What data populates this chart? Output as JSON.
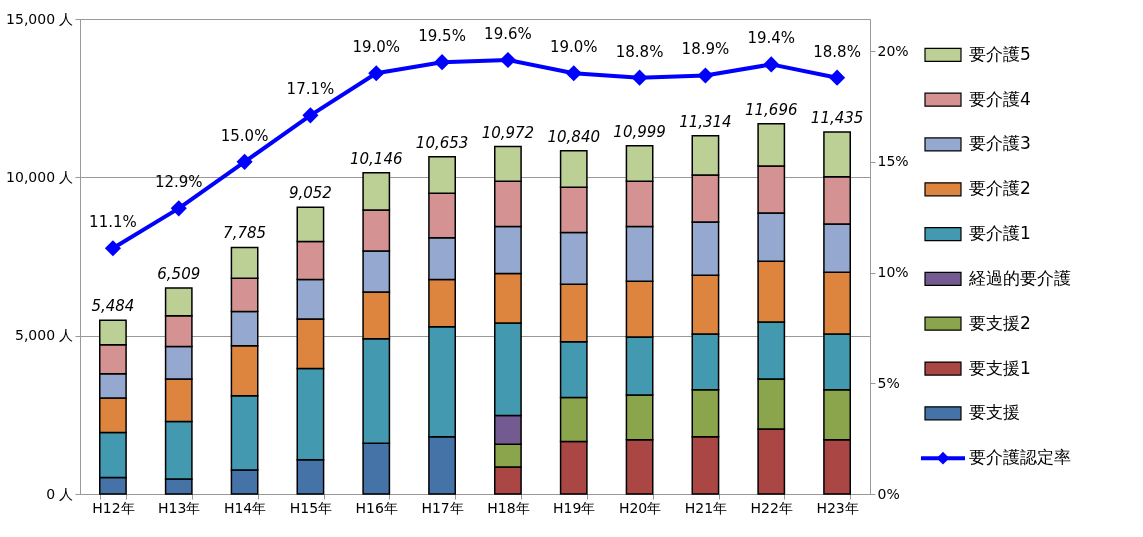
{
  "chart_data": {
    "type": "bar",
    "stacked": true,
    "categories": [
      "H12年",
      "H13年",
      "H14年",
      "H15年",
      "H16年",
      "H17年",
      "H18年",
      "H19年",
      "H20年",
      "H21年",
      "H22年",
      "H23年"
    ],
    "series": [
      {
        "name": "要支援",
        "color": "#4572a7",
        "values": [
          520,
          470,
          760,
          1080,
          1600,
          1810,
          null,
          null,
          null,
          null,
          null,
          null
        ]
      },
      {
        "name": "要支援1",
        "color": "#aa4744",
        "values": [
          null,
          null,
          null,
          null,
          null,
          null,
          850,
          1660,
          1710,
          1810,
          2050,
          1710
        ]
      },
      {
        "name": "要支援2",
        "color": "#8aa54b",
        "values": [
          null,
          null,
          null,
          null,
          null,
          null,
          720,
          1390,
          1420,
          1480,
          1580,
          1580
        ]
      },
      {
        "name": "経過的要介護",
        "color": "#735a91",
        "values": [
          null,
          null,
          null,
          null,
          null,
          null,
          910,
          null,
          null,
          null,
          null,
          null
        ]
      },
      {
        "name": "要介護1",
        "color": "#4299b0",
        "values": [
          1420,
          1820,
          2340,
          2880,
          3300,
          3470,
          2920,
          1760,
          1830,
          1760,
          1800,
          1760
        ]
      },
      {
        "name": "要介護2",
        "color": "#dd853e",
        "values": [
          1090,
          1340,
          1580,
          1570,
          1480,
          1490,
          1560,
          1810,
          1760,
          1860,
          1920,
          1950
        ]
      },
      {
        "name": "要介護3",
        "color": "#95a9d0",
        "values": [
          770,
          1030,
          1080,
          1240,
          1290,
          1320,
          1490,
          1640,
          1730,
          1680,
          1520,
          1530
        ]
      },
      {
        "name": "要介護4",
        "color": "#d49392",
        "values": [
          910,
          970,
          1050,
          1200,
          1300,
          1410,
          1430,
          1430,
          1430,
          1480,
          1490,
          1490
        ]
      },
      {
        "name": "要介護5",
        "color": "#bcd096",
        "values": [
          774,
          879,
          975,
          1082,
          1176,
          1153,
          1092,
          1150,
          1119,
          1244,
          1336,
          1415
        ]
      },
      {
        "name": "要介護認定率",
        "type": "line",
        "axis": "y2",
        "color": "#0000ff",
        "marker": "diamond",
        "line_style": "solid",
        "values": [
          11.1,
          12.9,
          15.0,
          17.1,
          19.0,
          19.5,
          19.6,
          19.0,
          18.8,
          18.9,
          19.4,
          18.8
        ],
        "value_labels": [
          "11.1%",
          "12.9%",
          "15.0%",
          "17.1%",
          "19.0%",
          "19.5%",
          "19.6%",
          "19.0%",
          "18.8%",
          "18.9%",
          "19.4%",
          "18.8%"
        ]
      }
    ],
    "totals": [
      "5,484",
      "6,509",
      "7,785",
      "9,052",
      "10,146",
      "10,653",
      "10,972",
      "10,840",
      "10,999",
      "11,314",
      "11,696",
      "11,435"
    ],
    "ylim": [
      0,
      15000
    ],
    "yticks": [
      {
        "value": 0,
        "label": "0 人"
      },
      {
        "value": 5000,
        "label": "5,000 人"
      },
      {
        "value": 10000,
        "label": "10,000 人"
      },
      {
        "value": 15000,
        "label": "15,000 人"
      }
    ],
    "y2lim": [
      0,
      21.45
    ],
    "y2ticks": [
      {
        "value": 0,
        "label": "0%"
      },
      {
        "value": 5,
        "label": "5%"
      },
      {
        "value": 10,
        "label": "10%"
      },
      {
        "value": 15,
        "label": "15%"
      },
      {
        "value": 20,
        "label": "20%"
      }
    ],
    "grid": "y",
    "legend": "right"
  }
}
